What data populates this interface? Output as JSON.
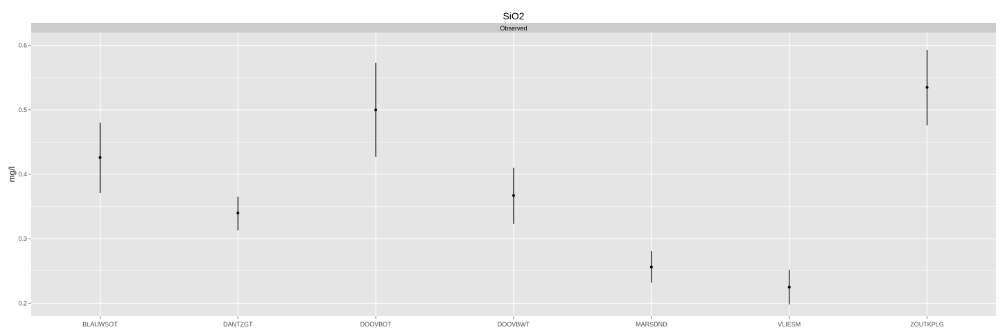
{
  "chart_data": {
    "type": "scatter",
    "title": "SiO2",
    "facet_label": "Observed",
    "xlabel": "",
    "ylabel": "mg/l",
    "categories": [
      "BLAUWSOT",
      "DANTZGT",
      "DOOVBOT",
      "DOOVBWT",
      "MARSDND",
      "VLIESM",
      "ZOUTKPLG"
    ],
    "y_ticks": [
      0.2,
      0.3,
      0.4,
      0.5,
      0.6
    ],
    "y_tick_labels": [
      "0.2",
      "0.3",
      "0.4",
      "0.5",
      "0.6"
    ],
    "ylim": [
      0.18,
      0.62
    ],
    "grid": true,
    "series": [
      {
        "values": [
          0.426,
          0.34,
          0.5,
          0.367,
          0.256,
          0.225,
          0.535
        ],
        "lower": [
          0.371,
          0.313,
          0.427,
          0.323,
          0.232,
          0.198,
          0.476
        ],
        "upper": [
          0.48,
          0.365,
          0.573,
          0.41,
          0.281,
          0.252,
          0.593
        ]
      }
    ],
    "colors": {
      "panel_background": "#e5e5e5",
      "strip_background": "#cccccc",
      "grid": "#ffffff",
      "marks": "#000000",
      "tick_label": "#4d4d4d"
    }
  }
}
